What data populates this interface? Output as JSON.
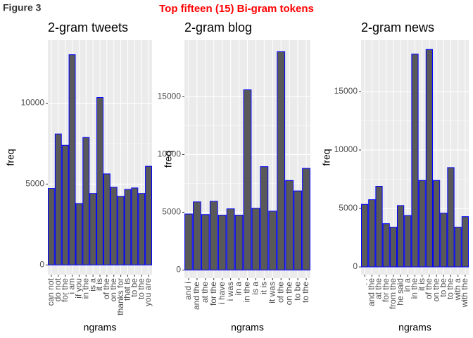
{
  "figure_label": "Figure 3",
  "title": "Top fifteen (15) Bi-gram tokens",
  "chart_data": [
    {
      "type": "bar",
      "title": "2-gram tweets",
      "x_label": "ngrams",
      "y_label": "freq",
      "categories": [
        "can not",
        "do not",
        "for the",
        "i am",
        "if you",
        "in the",
        "is a",
        "it is",
        "of the",
        "on the",
        "thanks for",
        "that is",
        "to be",
        "to the",
        "you are"
      ],
      "values": [
        4730,
        8100,
        7400,
        13000,
        3800,
        7880,
        4420,
        10350,
        5630,
        4800,
        4240,
        4670,
        4760,
        4420,
        6100
      ],
      "color": "#595959",
      "edge_color": "#0000ff",
      "ylim": [
        -600,
        13900
      ],
      "yticks": [
        0,
        5000,
        10000
      ],
      "grid": true
    },
    {
      "type": "bar",
      "title": "2-gram blog",
      "x_label": "ngrams",
      "y_label": "freq",
      "categories": [
        "and i",
        "and the",
        "at the",
        "for the",
        "i have",
        "i was",
        "in a",
        "in the",
        "is a",
        "it is",
        "it was",
        "of the",
        "on the",
        "to be",
        "to the"
      ],
      "values": [
        4850,
        5900,
        4800,
        5950,
        4750,
        5300,
        4750,
        15600,
        5350,
        8950,
        5100,
        18900,
        7750,
        6850,
        8800
      ],
      "color": "#595959",
      "edge_color": "#0000ff",
      "ylim": [
        -700,
        19900
      ],
      "yticks": [
        0,
        5000,
        10000,
        15000
      ],
      "grid": true
    },
    {
      "type": "bar",
      "title": "2-gram news",
      "x_label": "ngrams",
      "y_label": "freq",
      "categories": [
        ". .",
        "and the",
        "at the",
        "for the",
        "from the",
        "he said",
        "in a",
        "in the",
        "it is",
        "of the",
        "on the",
        "to be",
        "to the",
        "with a",
        "with the"
      ],
      "values": [
        5350,
        5750,
        6900,
        3700,
        3400,
        5250,
        4400,
        18200,
        7400,
        18600,
        7400,
        4600,
        8500,
        3400,
        4300
      ],
      "color": "#595959",
      "edge_color": "#0000ff",
      "ylim": [
        -660,
        19400
      ],
      "yticks": [
        0,
        5000,
        10000,
        15000
      ],
      "grid": true
    }
  ]
}
